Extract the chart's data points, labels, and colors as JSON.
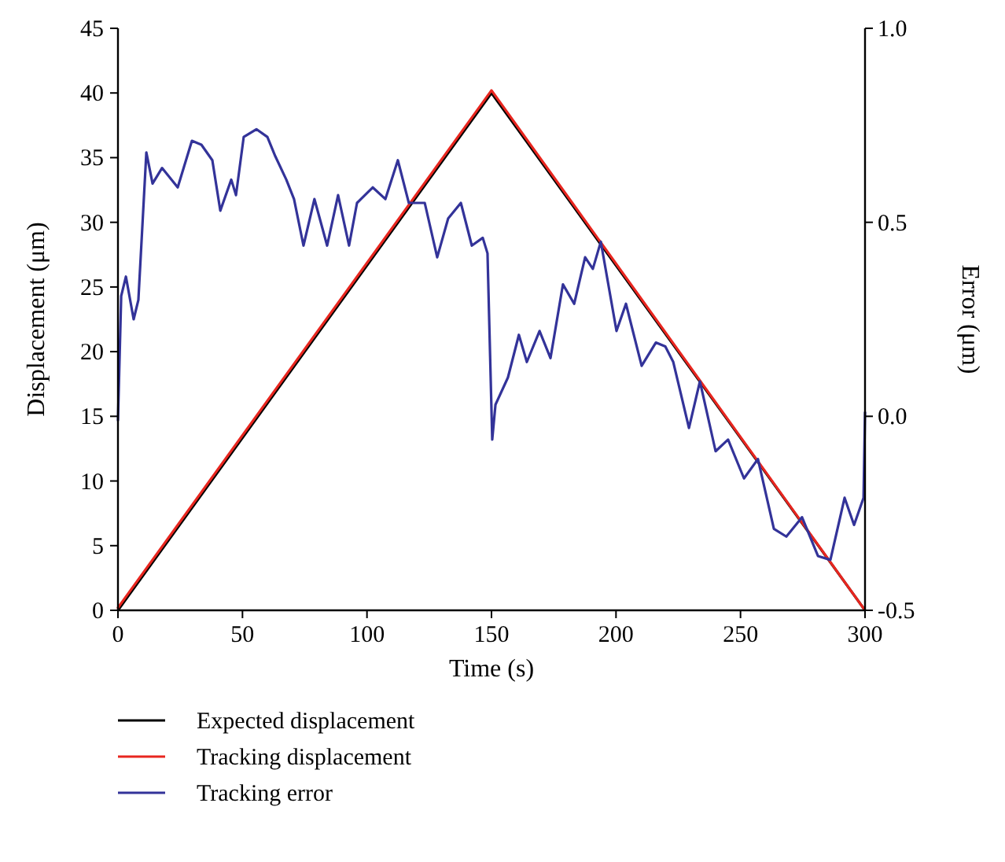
{
  "chart_data": {
    "type": "line",
    "xlabel": "Time (s)",
    "ylabel": "Displacement (μm)",
    "y2label": "Error (μm)",
    "xlim": [
      0,
      300
    ],
    "xticks": [
      0,
      50,
      100,
      150,
      200,
      250,
      300
    ],
    "ylim": [
      0,
      45
    ],
    "yticks": [
      0,
      5,
      10,
      15,
      20,
      25,
      30,
      35,
      40,
      45
    ],
    "y2lim": [
      -0.5,
      1.0
    ],
    "y2ticks": [
      -0.5,
      {
        "value": 0,
        "label": "0.0"
      },
      0.5,
      {
        "value": 1,
        "label": "1.0"
      }
    ],
    "legend": "bottom",
    "grid": false,
    "series": [
      {
        "name": "Expected displacement",
        "color": "#000000",
        "x": [
          0,
          150,
          300
        ],
        "values": [
          0,
          40,
          0
        ]
      },
      {
        "name": "Tracking displacement",
        "color": "#e8261f",
        "x": [
          0,
          150,
          300
        ],
        "values": [
          0.2,
          40.2,
          0
        ]
      },
      {
        "name": "Tracking error",
        "color": "#333399",
        "axis": "y2",
        "x": [
          0,
          1.3,
          3.2,
          6.3,
          8.2,
          11.4,
          13.9,
          17.7,
          24,
          29.7,
          33.5,
          37.9,
          41.1,
          45.5,
          47.4,
          50.5,
          55.6,
          60,
          63.2,
          67.6,
          70.7,
          74.5,
          78.9,
          84,
          88.4,
          92.8,
          96,
          102.3,
          107.4,
          112.4,
          116.8,
          123.2,
          128.2,
          132.6,
          137.7,
          142.1,
          146.5,
          148.4,
          150.3,
          151.6,
          156.6,
          161,
          164.2,
          169.3,
          173.7,
          178.7,
          183.2,
          187.6,
          190.7,
          193.9,
          200.2,
          204,
          210.3,
          216,
          219.8,
          223,
          229.3,
          233.7,
          240,
          245,
          251.4,
          257,
          263.4,
          268.4,
          274.7,
          281.1,
          286.1,
          291.8,
          295.6,
          299.4,
          300
        ],
        "values": [
          -0.01,
          0.31,
          0.36,
          0.25,
          0.3,
          0.68,
          0.6,
          0.64,
          0.59,
          0.71,
          0.7,
          0.66,
          0.53,
          0.61,
          0.57,
          0.72,
          0.74,
          0.72,
          0.67,
          0.61,
          0.56,
          0.44,
          0.56,
          0.44,
          0.57,
          0.44,
          0.55,
          0.59,
          0.56,
          0.66,
          0.55,
          0.55,
          0.41,
          0.51,
          0.55,
          0.44,
          0.46,
          0.42,
          -0.06,
          0.03,
          0.1,
          0.21,
          0.14,
          0.22,
          0.15,
          0.34,
          0.29,
          0.41,
          0.38,
          0.45,
          0.22,
          0.29,
          0.13,
          0.19,
          0.18,
          0.14,
          -0.03,
          0.09,
          -0.09,
          -0.06,
          -0.16,
          -0.11,
          -0.29,
          -0.31,
          -0.26,
          -0.36,
          -0.37,
          -0.21,
          -0.28,
          -0.21,
          0.01
        ]
      }
    ]
  }
}
